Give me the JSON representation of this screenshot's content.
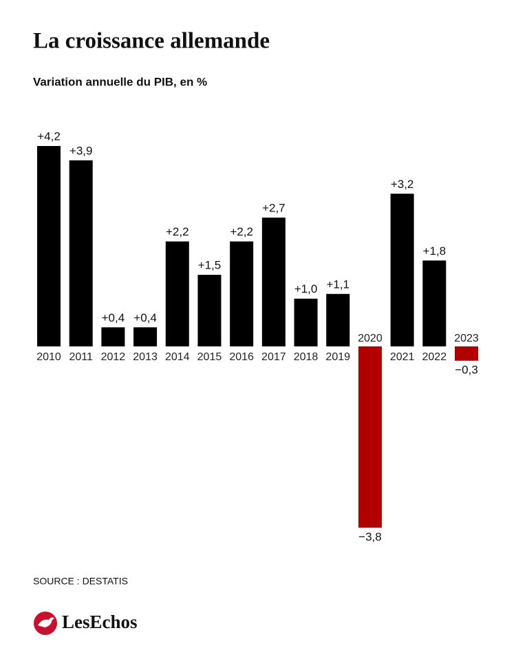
{
  "chart_data": {
    "type": "bar",
    "title": "La croissance allemande",
    "subtitle": "Variation annuelle du PIB, en %",
    "categories": [
      "2010",
      "2011",
      "2012",
      "2013",
      "2014",
      "2015",
      "2016",
      "2017",
      "2018",
      "2019",
      "2020",
      "2021",
      "2022",
      "2023"
    ],
    "values": [
      4.2,
      3.9,
      0.4,
      0.4,
      2.2,
      1.5,
      2.2,
      2.7,
      1.0,
      1.1,
      -3.8,
      3.2,
      1.8,
      -0.3
    ],
    "value_labels": [
      "+4,2",
      "+3,9",
      "+0,4",
      "+0,4",
      "+2,2",
      "+1,5",
      "+2,2",
      "+2,7",
      "+1,0",
      "+1,1",
      "−3,8",
      "+3,2",
      "+1,8",
      "−0,3"
    ],
    "color": "#000000",
    "negative_color": "#b00000",
    "source": "SOURCE : DESTATIS",
    "logo": "LesEchos"
  }
}
